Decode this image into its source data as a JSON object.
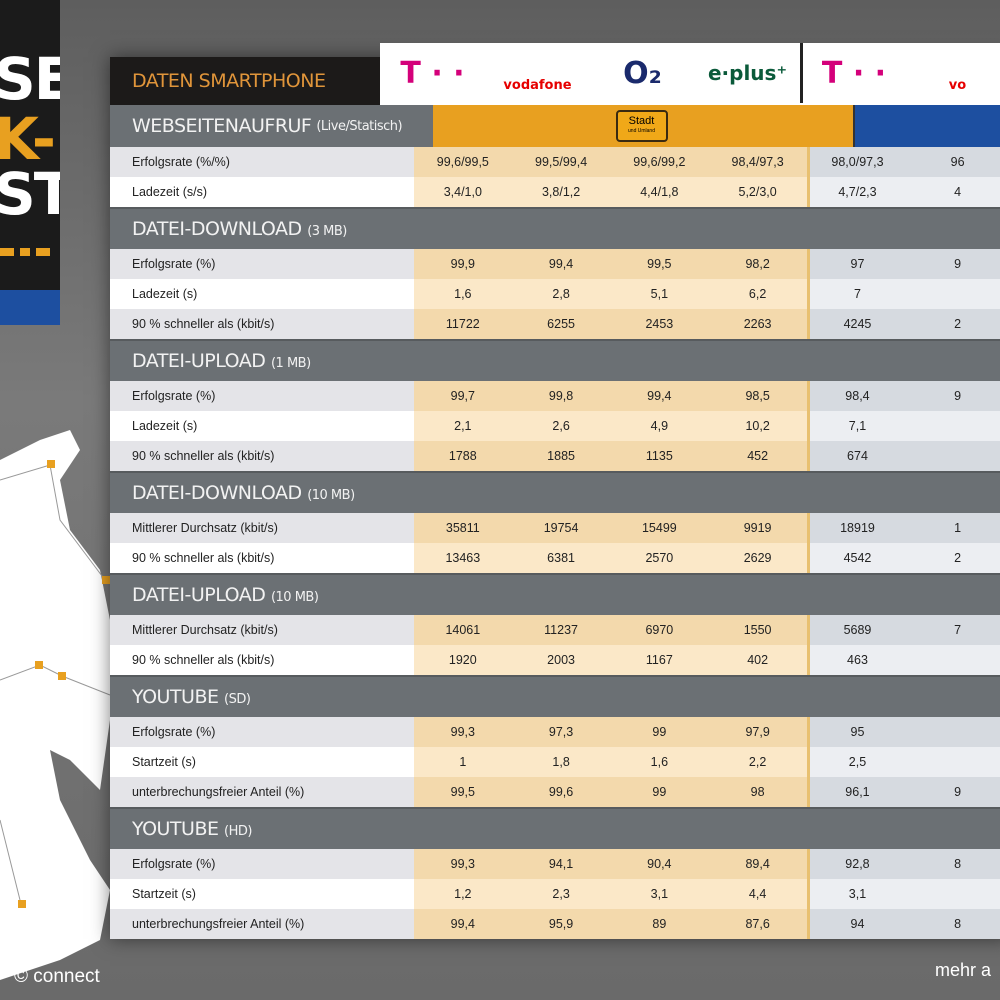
{
  "side_banner": {
    "lines": [
      "SE",
      "K-",
      "ST"
    ]
  },
  "table": {
    "title": "DATEN SMARTPHONE",
    "operators": [
      {
        "name": "Telekom",
        "logo": "T · ·",
        "color": "#d4007a"
      },
      {
        "name": "vodafone",
        "logo": "vodafone",
        "color": "#e60000"
      },
      {
        "name": "O2",
        "logo": "O₂",
        "color": "#1a2a6c"
      },
      {
        "name": "e-plus",
        "logo": "e·plus⁺",
        "color": "#0a5a3a"
      },
      {
        "name": "Telekom",
        "logo": "T · ·",
        "color": "#d4007a"
      },
      {
        "name": "vodafone",
        "logo": "vo",
        "color": "#e60000"
      }
    ],
    "badge": {
      "label": "Stadt",
      "sub": "und Umland"
    },
    "colors": {
      "orange": "#e8a020",
      "blue": "#1d4fa0"
    },
    "sections": [
      {
        "title": "WEBSEITENAUFRUF",
        "note": "(Live/Statisch)",
        "rows": [
          {
            "label": "Erfolgsrate (%/%)",
            "values": [
              "99,6/99,5",
              "99,5/99,4",
              "99,6/99,2",
              "98,4/97,3",
              "98,0/97,3",
              "96"
            ]
          },
          {
            "label": "Ladezeit (s/s)",
            "values": [
              "3,4/1,0",
              "3,8/1,2",
              "4,4/1,8",
              "5,2/3,0",
              "4,7/2,3",
              "4"
            ]
          }
        ]
      },
      {
        "title": "DATEI-DOWNLOAD",
        "note": "(3 MB)",
        "rows": [
          {
            "label": "Erfolgsrate (%)",
            "values": [
              "99,9",
              "99,4",
              "99,5",
              "98,2",
              "97",
              "9"
            ]
          },
          {
            "label": "Ladezeit (s)",
            "values": [
              "1,6",
              "2,8",
              "5,1",
              "6,2",
              "7",
              ""
            ]
          },
          {
            "label": "90 % schneller als (kbit/s)",
            "values": [
              "11722",
              "6255",
              "2453",
              "2263",
              "4245",
              "2"
            ]
          }
        ]
      },
      {
        "title": "DATEI-UPLOAD",
        "note": "(1 MB)",
        "rows": [
          {
            "label": "Erfolgsrate (%)",
            "values": [
              "99,7",
              "99,8",
              "99,4",
              "98,5",
              "98,4",
              "9"
            ]
          },
          {
            "label": "Ladezeit (s)",
            "values": [
              "2,1",
              "2,6",
              "4,9",
              "10,2",
              "7,1",
              ""
            ]
          },
          {
            "label": "90 % schneller als (kbit/s)",
            "values": [
              "1788",
              "1885",
              "1135",
              "452",
              "674",
              ""
            ]
          }
        ]
      },
      {
        "title": "DATEI-DOWNLOAD",
        "note": "(10 MB)",
        "rows": [
          {
            "label": "Mittlerer Durchsatz (kbit/s)",
            "values": [
              "35811",
              "19754",
              "15499",
              "9919",
              "18919",
              "1"
            ]
          },
          {
            "label": "90 % schneller als (kbit/s)",
            "values": [
              "13463",
              "6381",
              "2570",
              "2629",
              "4542",
              "2"
            ]
          }
        ]
      },
      {
        "title": "DATEI-UPLOAD",
        "note": "(10 MB)",
        "rows": [
          {
            "label": "Mittlerer Durchsatz (kbit/s)",
            "values": [
              "14061",
              "11237",
              "6970",
              "1550",
              "5689",
              "7"
            ]
          },
          {
            "label": "90 % schneller als (kbit/s)",
            "values": [
              "1920",
              "2003",
              "1167",
              "402",
              "463",
              ""
            ]
          }
        ]
      },
      {
        "title": "YOUTUBE",
        "note": "(SD)",
        "rows": [
          {
            "label": "Erfolgsrate (%)",
            "values": [
              "99,3",
              "97,3",
              "99",
              "97,9",
              "95",
              ""
            ]
          },
          {
            "label": "Startzeit (s)",
            "values": [
              "1",
              "1,8",
              "1,6",
              "2,2",
              "2,5",
              ""
            ]
          },
          {
            "label": "unterbrechungsfreier Anteil     (%)",
            "values": [
              "99,5",
              "99,6",
              "99",
              "98",
              "96,1",
              "9"
            ]
          }
        ]
      },
      {
        "title": "YOUTUBE",
        "note": "(HD)",
        "rows": [
          {
            "label": "Erfolgsrate (%)",
            "values": [
              "99,3",
              "94,1",
              "90,4",
              "89,4",
              "92,8",
              "8"
            ]
          },
          {
            "label": "Startzeit (s)",
            "values": [
              "1,2",
              "2,3",
              "3,1",
              "4,4",
              "3,1",
              ""
            ]
          },
          {
            "label": "unterbrechungsfreier Anteil (%)",
            "values": [
              "99,4",
              "95,9",
              "89",
              "87,6",
              "94",
              "8"
            ]
          }
        ]
      }
    ]
  },
  "footer": {
    "copyright": "© connect",
    "more": "mehr a"
  }
}
